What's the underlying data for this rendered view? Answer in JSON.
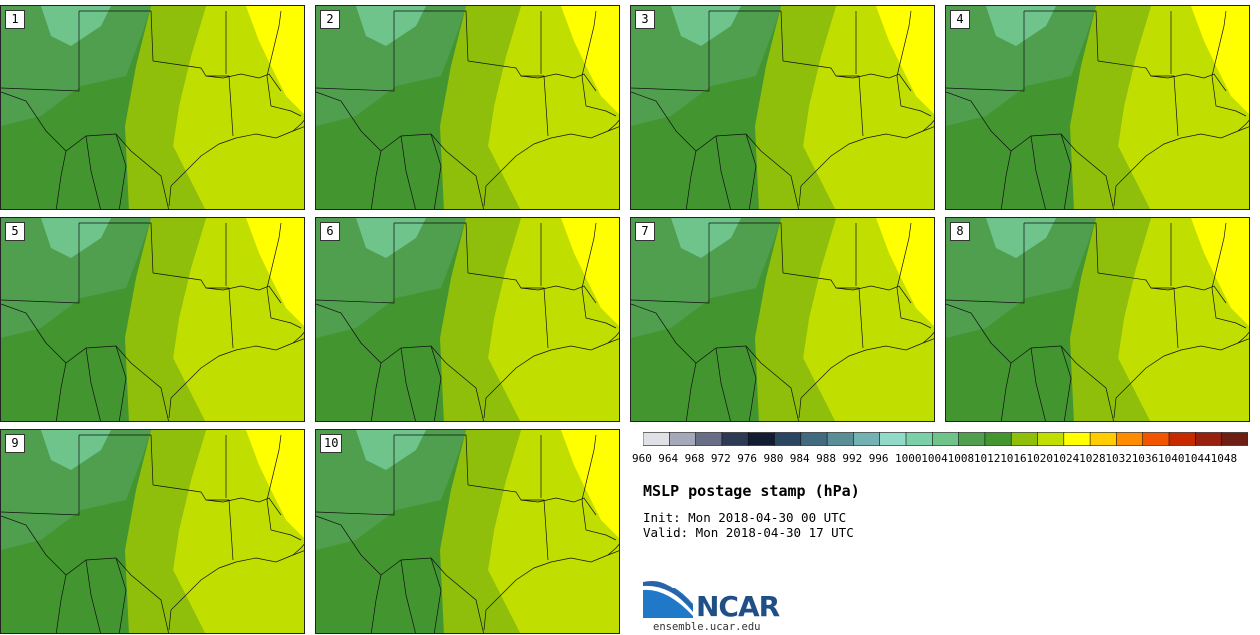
{
  "stamps": [
    {
      "label": "1"
    },
    {
      "label": "2"
    },
    {
      "label": "3"
    },
    {
      "label": "4"
    },
    {
      "label": "5"
    },
    {
      "label": "6"
    },
    {
      "label": "7"
    },
    {
      "label": "8"
    },
    {
      "label": "9"
    },
    {
      "label": "10"
    }
  ],
  "field_colors": {
    "c1004": "#6ec48a",
    "c1008": "#4f9f4f",
    "c1012": "#439530",
    "c1016": "#8fbf0a",
    "c1020": "#c0de00",
    "c1024": "#ffff00"
  },
  "colorbar": {
    "colors": [
      "#dfe1e6",
      "#a4a8b8",
      "#676e86",
      "#2d3a55",
      "#121c33",
      "#2a4660",
      "#436b80",
      "#5a8e96",
      "#72b2b2",
      "#91d9c9",
      "#7bd0a8",
      "#6ec48a",
      "#4f9f4f",
      "#439530",
      "#8fbf0a",
      "#c0de00",
      "#ffff00",
      "#ffcc00",
      "#ff8c00",
      "#f25500",
      "#c82a00",
      "#98200e",
      "#6e1e12"
    ],
    "tick_labels": [
      "960",
      "964",
      "968",
      "972",
      "976",
      "980",
      "984",
      "988",
      "992",
      "996",
      "1000",
      "1004",
      "1008",
      "1012",
      "1016",
      "1020",
      "1024",
      "1028",
      "1032",
      "1036",
      "1040",
      "1044",
      "1048"
    ]
  },
  "title": "MSLP postage stamp (hPa)",
  "init": "Init: Mon 2018-04-30 00 UTC",
  "valid": "Valid: Mon 2018-04-30 17 UTC",
  "logo": {
    "text": "NCAR",
    "url": "ensemble.ucar.edu",
    "color": "#1f4f86"
  }
}
